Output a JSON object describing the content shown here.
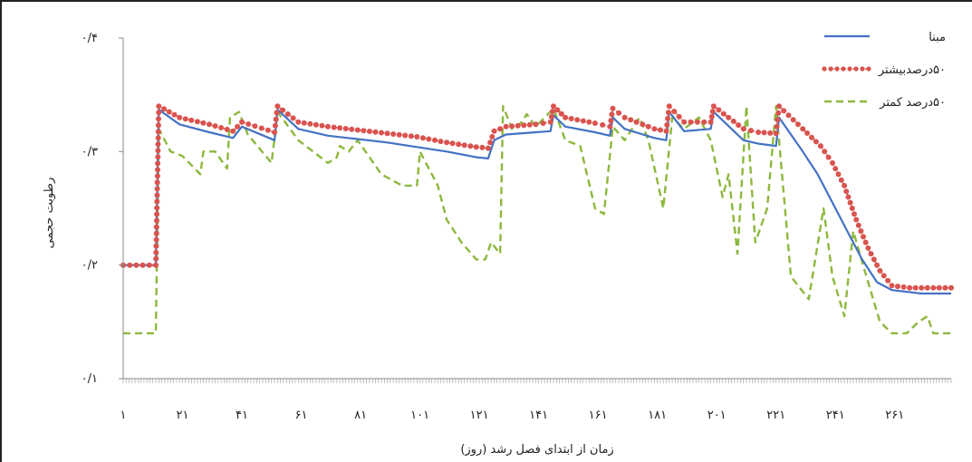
{
  "chart_data": {
    "type": "line",
    "xlabel": "زمان از ابتدای فصل رشد (روز)",
    "ylabel": "رطوبت حجمی",
    "ylim": [
      0.1,
      0.4
    ],
    "xlim": [
      1,
      280
    ],
    "x_tick_labels": [
      "۱",
      "۲۱",
      "۴۱",
      "۶۱",
      "۸۱",
      "۱۰۱",
      "۱۲۱",
      "۱۴۱",
      "۱۶۱",
      "۱۸۱",
      "۲۰۱",
      "۲۲۱",
      "۲۴۱",
      "۲۶۱"
    ],
    "x_tick_values": [
      1,
      21,
      41,
      61,
      81,
      101,
      121,
      141,
      161,
      181,
      201,
      221,
      241,
      261
    ],
    "y_tick_labels": [
      "۰/۱",
      "۰/۲",
      "۰/۳",
      "۰/۴"
    ],
    "y_tick_values": [
      0.1,
      0.2,
      0.3,
      0.4
    ],
    "grid": false,
    "legend_position": "top-right",
    "colors": {
      "blue": "#4472C4",
      "red": "#D9534F",
      "green": "#8DB83D"
    },
    "series": [
      {
        "name": "مبنا",
        "style": "solid",
        "points": [
          [
            1,
            0.2
          ],
          [
            12,
            0.2
          ],
          [
            13,
            0.337
          ],
          [
            20,
            0.324
          ],
          [
            30,
            0.317
          ],
          [
            38,
            0.312
          ],
          [
            41,
            0.322
          ],
          [
            52,
            0.31
          ],
          [
            53,
            0.337
          ],
          [
            60,
            0.32
          ],
          [
            70,
            0.314
          ],
          [
            80,
            0.311
          ],
          [
            90,
            0.308
          ],
          [
            100,
            0.304
          ],
          [
            110,
            0.3
          ],
          [
            120,
            0.295
          ],
          [
            124,
            0.294
          ],
          [
            126,
            0.31
          ],
          [
            130,
            0.315
          ],
          [
            140,
            0.317
          ],
          [
            145,
            0.318
          ],
          [
            146,
            0.332
          ],
          [
            150,
            0.322
          ],
          [
            160,
            0.317
          ],
          [
            165,
            0.314
          ],
          [
            166,
            0.33
          ],
          [
            170,
            0.32
          ],
          [
            180,
            0.312
          ],
          [
            184,
            0.31
          ],
          [
            185,
            0.335
          ],
          [
            190,
            0.318
          ],
          [
            199,
            0.32
          ],
          [
            200,
            0.335
          ],
          [
            210,
            0.31
          ],
          [
            215,
            0.307
          ],
          [
            221,
            0.305
          ],
          [
            222,
            0.33
          ],
          [
            230,
            0.3
          ],
          [
            235,
            0.28
          ],
          [
            240,
            0.255
          ],
          [
            245,
            0.23
          ],
          [
            250,
            0.205
          ],
          [
            255,
            0.185
          ],
          [
            260,
            0.178
          ],
          [
            270,
            0.175
          ],
          [
            280,
            0.175
          ]
        ]
      },
      {
        "name": "۵۰درصدبیشتر",
        "style": "dotted-markers",
        "points": [
          [
            1,
            0.2
          ],
          [
            12,
            0.2
          ],
          [
            13,
            0.34
          ],
          [
            20,
            0.33
          ],
          [
            30,
            0.324
          ],
          [
            38,
            0.318
          ],
          [
            41,
            0.326
          ],
          [
            52,
            0.317
          ],
          [
            53,
            0.34
          ],
          [
            60,
            0.326
          ],
          [
            70,
            0.322
          ],
          [
            80,
            0.319
          ],
          [
            90,
            0.316
          ],
          [
            100,
            0.313
          ],
          [
            110,
            0.308
          ],
          [
            120,
            0.304
          ],
          [
            124,
            0.303
          ],
          [
            126,
            0.318
          ],
          [
            130,
            0.322
          ],
          [
            140,
            0.324
          ],
          [
            145,
            0.326
          ],
          [
            146,
            0.34
          ],
          [
            150,
            0.33
          ],
          [
            160,
            0.325
          ],
          [
            165,
            0.322
          ],
          [
            166,
            0.338
          ],
          [
            170,
            0.33
          ],
          [
            180,
            0.32
          ],
          [
            184,
            0.318
          ],
          [
            185,
            0.34
          ],
          [
            190,
            0.326
          ],
          [
            199,
            0.326
          ],
          [
            200,
            0.34
          ],
          [
            210,
            0.32
          ],
          [
            215,
            0.317
          ],
          [
            221,
            0.316
          ],
          [
            222,
            0.34
          ],
          [
            230,
            0.32
          ],
          [
            236,
            0.305
          ],
          [
            240,
            0.29
          ],
          [
            244,
            0.27
          ],
          [
            248,
            0.24
          ],
          [
            252,
            0.215
          ],
          [
            256,
            0.195
          ],
          [
            260,
            0.182
          ],
          [
            266,
            0.18
          ],
          [
            280,
            0.18
          ]
        ]
      },
      {
        "name": "۵۰درصد کمتر",
        "style": "dashed",
        "points": [
          [
            1,
            0.14
          ],
          [
            12,
            0.14
          ],
          [
            13,
            0.32
          ],
          [
            17,
            0.3
          ],
          [
            21,
            0.296
          ],
          [
            27,
            0.28
          ],
          [
            28,
            0.3
          ],
          [
            32,
            0.3
          ],
          [
            36,
            0.285
          ],
          [
            37,
            0.33
          ],
          [
            40,
            0.335
          ],
          [
            43,
            0.315
          ],
          [
            51,
            0.29
          ],
          [
            53,
            0.335
          ],
          [
            60,
            0.31
          ],
          [
            70,
            0.29
          ],
          [
            73,
            0.295
          ],
          [
            74,
            0.305
          ],
          [
            77,
            0.3
          ],
          [
            80,
            0.31
          ],
          [
            88,
            0.28
          ],
          [
            95,
            0.27
          ],
          [
            100,
            0.27
          ],
          [
            101,
            0.3
          ],
          [
            107,
            0.27
          ],
          [
            110,
            0.24
          ],
          [
            115,
            0.22
          ],
          [
            120,
            0.205
          ],
          [
            123,
            0.205
          ],
          [
            125,
            0.22
          ],
          [
            128,
            0.21
          ],
          [
            129,
            0.34
          ],
          [
            132,
            0.32
          ],
          [
            135,
            0.325
          ],
          [
            137,
            0.333
          ],
          [
            140,
            0.322
          ],
          [
            146,
            0.338
          ],
          [
            150,
            0.31
          ],
          [
            155,
            0.305
          ],
          [
            160,
            0.25
          ],
          [
            163,
            0.245
          ],
          [
            166,
            0.322
          ],
          [
            170,
            0.31
          ],
          [
            175,
            0.33
          ],
          [
            178,
            0.31
          ],
          [
            183,
            0.25
          ],
          [
            186,
            0.33
          ],
          [
            190,
            0.32
          ],
          [
            195,
            0.33
          ],
          [
            199,
            0.31
          ],
          [
            203,
            0.26
          ],
          [
            205,
            0.28
          ],
          [
            208,
            0.21
          ],
          [
            211,
            0.34
          ],
          [
            214,
            0.22
          ],
          [
            218,
            0.25
          ],
          [
            221,
            0.34
          ],
          [
            226,
            0.19
          ],
          [
            232,
            0.17
          ],
          [
            237,
            0.25
          ],
          [
            240,
            0.19
          ],
          [
            244,
            0.155
          ],
          [
            247,
            0.23
          ],
          [
            252,
            0.185
          ],
          [
            256,
            0.15
          ],
          [
            260,
            0.14
          ],
          [
            262,
            0.14
          ],
          [
            265,
            0.14
          ],
          [
            267,
            0.145
          ],
          [
            269,
            0.15
          ],
          [
            272,
            0.155
          ],
          [
            274,
            0.14
          ],
          [
            280,
            0.14
          ]
        ]
      }
    ]
  }
}
